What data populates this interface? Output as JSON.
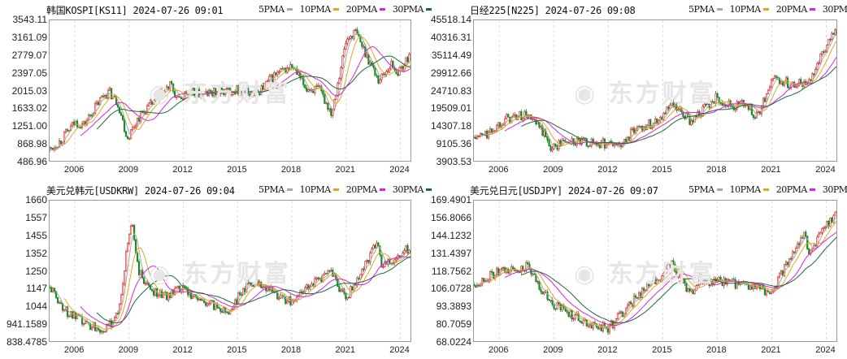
{
  "watermark": "东方财富",
  "ma_colors": {
    "MA5": "#a8a8a8",
    "MA10": "#e0a820",
    "MA20": "#e020e0",
    "MA30": "#1a6b3a"
  },
  "up_color": "#d42020",
  "down_color": "#1a8a2a",
  "chart_data": [
    {
      "type": "candlestick",
      "title": "韩国KOSPI[KS11] 2024-07-26 09:01",
      "legend": [
        "5PMA",
        "10PMA",
        "20PMA",
        "30PMA"
      ],
      "yticks": [
        "3543.11",
        "3161.09",
        "2779.07",
        "2397.05",
        "2015.03",
        "1633.02",
        "1251.00",
        "868.98",
        "486.96"
      ],
      "ylim": [
        486.96,
        3543.11
      ],
      "xticks": [
        "2006",
        "2009",
        "2012",
        "2015",
        "2018",
        "2021",
        "2024"
      ],
      "xlim": [
        2004.6,
        2024.65
      ],
      "trend": [
        [
          2004.6,
          760
        ],
        [
          2005.2,
          950
        ],
        [
          2006,
          1350
        ],
        [
          2006.5,
          1300
        ],
        [
          2007.6,
          1950
        ],
        [
          2007.9,
          2000
        ],
        [
          2008.4,
          1750
        ],
        [
          2008.9,
          1000
        ],
        [
          2009.5,
          1450
        ],
        [
          2010,
          1650
        ],
        [
          2011.3,
          2150
        ],
        [
          2011.7,
          1800
        ],
        [
          2012.2,
          2000
        ],
        [
          2013,
          1950
        ],
        [
          2014,
          2000
        ],
        [
          2015,
          2050
        ],
        [
          2016,
          1950
        ],
        [
          2017,
          2350
        ],
        [
          2018,
          2550
        ],
        [
          2018.8,
          2080
        ],
        [
          2019.5,
          2050
        ],
        [
          2020.2,
          1550
        ],
        [
          2020.6,
          2350
        ],
        [
          2021,
          3100
        ],
        [
          2021.5,
          3300
        ],
        [
          2022,
          2900
        ],
        [
          2022.8,
          2250
        ],
        [
          2023.5,
          2600
        ],
        [
          2023.9,
          2400
        ],
        [
          2024.5,
          2800
        ]
      ]
    },
    {
      "type": "candlestick",
      "title": "日经225[N225] 2024-07-26 09:08",
      "legend": [
        "5PMA",
        "10PMA",
        "20PMA",
        "30PMA"
      ],
      "yticks": [
        "45518.14",
        "40316.31",
        "35114.49",
        "29912.66",
        "24710.83",
        "19509.01",
        "14307.18",
        "9105.36",
        "3903.53"
      ],
      "ylim": [
        3903.53,
        45518.14
      ],
      "xticks": [
        "2006",
        "2009",
        "2012",
        "2015",
        "2018",
        "2021",
        "2024"
      ],
      "xlim": [
        2004.6,
        2024.65
      ],
      "trend": [
        [
          2004.6,
          11000
        ],
        [
          2005.5,
          12500
        ],
        [
          2006.2,
          16500
        ],
        [
          2007.5,
          17800
        ],
        [
          2008.3,
          13500
        ],
        [
          2008.9,
          8000
        ],
        [
          2009.5,
          10000
        ],
        [
          2010.5,
          9800
        ],
        [
          2011.5,
          9500
        ],
        [
          2012.8,
          9000
        ],
        [
          2013.5,
          14000
        ],
        [
          2014.5,
          15500
        ],
        [
          2015.5,
          20500
        ],
        [
          2016.5,
          16000
        ],
        [
          2018,
          23000
        ],
        [
          2018.9,
          20000
        ],
        [
          2019.5,
          21500
        ],
        [
          2020.2,
          17000
        ],
        [
          2021,
          28500
        ],
        [
          2022,
          27000
        ],
        [
          2023,
          27500
        ],
        [
          2023.5,
          33000
        ],
        [
          2024.2,
          40000
        ],
        [
          2024.5,
          41500
        ]
      ]
    },
    {
      "type": "candlestick",
      "title": "美元兑韩元[USDKRW] 2024-07-26 09:04",
      "legend": [
        "5PMA",
        "10PMA",
        "20PMA",
        "30PMA"
      ],
      "yticks": [
        "1660",
        "1557",
        "1455",
        "1352",
        "1250",
        "1147",
        "1044",
        "941.1589",
        "838.4785"
      ],
      "ylim": [
        838.4785,
        1660
      ],
      "xticks": [
        "2006",
        "2009",
        "2012",
        "2015",
        "2018",
        "2021",
        "2024"
      ],
      "xlim": [
        2004.6,
        2024.65
      ],
      "trend": [
        [
          2004.6,
          1160
        ],
        [
          2005.5,
          1020
        ],
        [
          2006.5,
          950
        ],
        [
          2007.8,
          915
        ],
        [
          2008.5,
          1050
        ],
        [
          2008.9,
          1400
        ],
        [
          2009.15,
          1550
        ],
        [
          2009.5,
          1260
        ],
        [
          2010,
          1160
        ],
        [
          2011,
          1110
        ],
        [
          2012,
          1150
        ],
        [
          2013,
          1080
        ],
        [
          2014.5,
          1020
        ],
        [
          2015.5,
          1170
        ],
        [
          2016,
          1200
        ],
        [
          2017,
          1130
        ],
        [
          2018,
          1070
        ],
        [
          2019,
          1180
        ],
        [
          2020.2,
          1240
        ],
        [
          2021,
          1090
        ],
        [
          2022.8,
          1430
        ],
        [
          2023,
          1270
        ],
        [
          2023.5,
          1320
        ],
        [
          2024.5,
          1385
        ]
      ]
    },
    {
      "type": "candlestick",
      "title": "美元兑日元[USDJPY] 2024-07-26 09:07",
      "legend": [
        "5PMA",
        "10PMA",
        "20PMA",
        "30PMA"
      ],
      "yticks": [
        "169.4901",
        "156.8066",
        "144.1232",
        "131.4397",
        "118.7562",
        "106.0728",
        "93.3893",
        "80.7059",
        "68.0224"
      ],
      "ylim": [
        68.0224,
        169.4901
      ],
      "xticks": [
        "2006",
        "2009",
        "2012",
        "2015",
        "2018",
        "2021",
        "2024"
      ],
      "xlim": [
        2004.6,
        2024.65
      ],
      "trend": [
        [
          2004.6,
          110
        ],
        [
          2005.9,
          118
        ],
        [
          2007.5,
          122
        ],
        [
          2008.9,
          95
        ],
        [
          2009.5,
          92
        ],
        [
          2011,
          81
        ],
        [
          2012,
          78
        ],
        [
          2013.5,
          100
        ],
        [
          2015.5,
          124
        ],
        [
          2016.5,
          102
        ],
        [
          2017,
          113
        ],
        [
          2018.5,
          111
        ],
        [
          2019.5,
          108
        ],
        [
          2020.5,
          106
        ],
        [
          2021,
          104
        ],
        [
          2022.8,
          148
        ],
        [
          2023,
          130
        ],
        [
          2023.9,
          150
        ],
        [
          2024.5,
          160
        ]
      ]
    }
  ]
}
